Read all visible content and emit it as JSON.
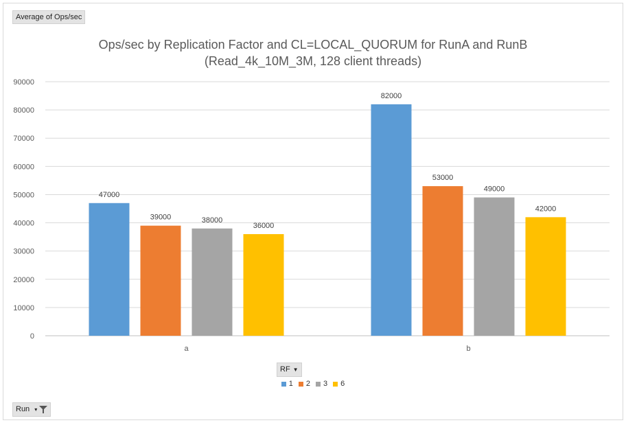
{
  "pivot": {
    "value_field": "Average of Ops/sec",
    "legend_field": "RF",
    "axis_field": "Run"
  },
  "chart_data": {
    "type": "bar",
    "title": "Ops/sec by Replication Factor and CL=LOCAL_QUORUM for RunA and RunB",
    "subtitle": "(Read_4k_10M_3M, 128 client threads)",
    "categories": [
      "a",
      "b"
    ],
    "series": [
      {
        "name": "1",
        "color": "#5b9bd5",
        "values": [
          47000,
          82000
        ]
      },
      {
        "name": "2",
        "color": "#ed7d31",
        "values": [
          39000,
          53000
        ]
      },
      {
        "name": "3",
        "color": "#a5a5a5",
        "values": [
          38000,
          49000
        ]
      },
      {
        "name": "6",
        "color": "#ffc000",
        "values": [
          36000,
          42000
        ]
      }
    ],
    "yticks": [
      "0",
      "10000",
      "20000",
      "30000",
      "40000",
      "50000",
      "60000",
      "70000",
      "80000",
      "90000"
    ],
    "ylim": [
      0,
      90000
    ],
    "grid": true,
    "legend_position": "bottom"
  }
}
